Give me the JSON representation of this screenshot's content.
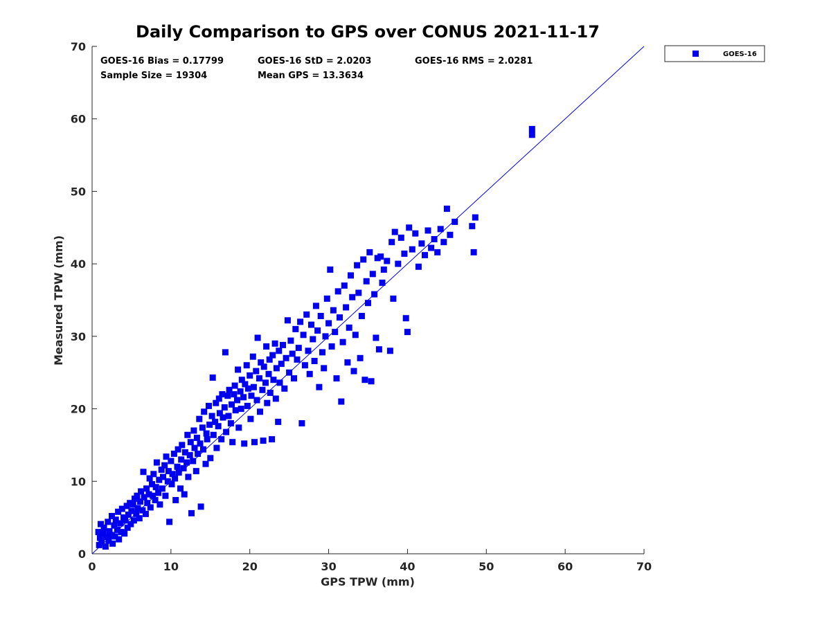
{
  "chart_data": {
    "type": "scatter",
    "title": "Daily Comparison to GPS over CONUS 2021-11-17",
    "xlabel": "GPS TPW (mm)",
    "ylabel": "Measured TPW (mm)",
    "xlim": [
      0,
      70
    ],
    "ylim": [
      0,
      70
    ],
    "xticks": [
      "0",
      "10",
      "20",
      "30",
      "40",
      "50",
      "60",
      "70"
    ],
    "yticks": [
      "0",
      "10",
      "20",
      "30",
      "40",
      "50",
      "60",
      "70"
    ],
    "grid": false,
    "legend_position": "top-right outside",
    "legend": [
      "GOES-16"
    ],
    "reference_line": {
      "label": "1:1",
      "x": [
        0,
        70
      ],
      "y": [
        0,
        70
      ]
    },
    "stats": {
      "bias": "GOES-16 Bias = 0.17799",
      "std": "GOES-16 StD = 2.0203",
      "rms": "GOES-16 RMS = 2.0281",
      "sample_size": "Sample Size = 19304",
      "mean_gps": "Mean GPS = 13.3634"
    },
    "series": [
      {
        "name": "GOES-16",
        "color": "#0000ee",
        "marker": "square",
        "points": [
          [
            0.8,
            3.0
          ],
          [
            0.9,
            1.2
          ],
          [
            1.0,
            2.2
          ],
          [
            1.1,
            4.1
          ],
          [
            1.2,
            1.5
          ],
          [
            1.4,
            2.8
          ],
          [
            1.5,
            3.6
          ],
          [
            1.7,
            1.0
          ],
          [
            1.8,
            2.3
          ],
          [
            2.0,
            4.4
          ],
          [
            2.1,
            1.8
          ],
          [
            2.2,
            3.1
          ],
          [
            2.4,
            2.6
          ],
          [
            2.5,
            5.2
          ],
          [
            2.6,
            1.4
          ],
          [
            2.8,
            3.9
          ],
          [
            2.9,
            2.4
          ],
          [
            3.0,
            4.7
          ],
          [
            3.2,
            3.3
          ],
          [
            3.3,
            5.8
          ],
          [
            3.4,
            2.0
          ],
          [
            3.6,
            4.2
          ],
          [
            3.7,
            3.0
          ],
          [
            3.8,
            6.2
          ],
          [
            4.0,
            5.0
          ],
          [
            4.1,
            2.8
          ],
          [
            4.2,
            4.6
          ],
          [
            4.4,
            6.6
          ],
          [
            4.5,
            3.6
          ],
          [
            4.6,
            5.4
          ],
          [
            4.8,
            7.0
          ],
          [
            4.9,
            4.1
          ],
          [
            5.0,
            5.9
          ],
          [
            5.2,
            6.8
          ],
          [
            5.3,
            4.6
          ],
          [
            5.4,
            7.6
          ],
          [
            5.6,
            5.5
          ],
          [
            5.7,
            8.0
          ],
          [
            5.8,
            6.3
          ],
          [
            6.0,
            4.9
          ],
          [
            6.1,
            7.2
          ],
          [
            6.2,
            8.6
          ],
          [
            6.4,
            6.0
          ],
          [
            6.5,
            11.3
          ],
          [
            6.6,
            7.8
          ],
          [
            6.8,
            5.5
          ],
          [
            6.9,
            9.0
          ],
          [
            7.0,
            7.0
          ],
          [
            7.2,
            8.2
          ],
          [
            7.3,
            10.4
          ],
          [
            7.4,
            6.4
          ],
          [
            7.6,
            9.6
          ],
          [
            7.7,
            8.0
          ],
          [
            7.8,
            11.0
          ],
          [
            8.0,
            7.4
          ],
          [
            8.1,
            9.2
          ],
          [
            8.2,
            12.6
          ],
          [
            8.4,
            8.4
          ],
          [
            8.5,
            10.2
          ],
          [
            8.6,
            6.8
          ],
          [
            8.8,
            11.6
          ],
          [
            8.9,
            9.0
          ],
          [
            9.0,
            10.6
          ],
          [
            9.2,
            12.2
          ],
          [
            9.3,
            8.0
          ],
          [
            9.4,
            13.4
          ],
          [
            9.6,
            10.0
          ],
          [
            9.7,
            11.4
          ],
          [
            9.8,
            4.4
          ],
          [
            10.0,
            12.8
          ],
          [
            10.1,
            9.6
          ],
          [
            10.2,
            11.0
          ],
          [
            10.4,
            13.8
          ],
          [
            10.5,
            10.4
          ],
          [
            10.6,
            7.4
          ],
          [
            10.8,
            12.0
          ],
          [
            10.9,
            14.4
          ],
          [
            11.0,
            11.2
          ],
          [
            11.2,
            9.0
          ],
          [
            11.3,
            13.0
          ],
          [
            11.4,
            15.0
          ],
          [
            11.6,
            11.8
          ],
          [
            11.7,
            8.2
          ],
          [
            11.8,
            14.0
          ],
          [
            12.0,
            12.6
          ],
          [
            12.1,
            16.4
          ],
          [
            12.2,
            10.6
          ],
          [
            12.4,
            13.6
          ],
          [
            12.5,
            15.4
          ],
          [
            12.6,
            5.6
          ],
          [
            12.8,
            12.8
          ],
          [
            12.9,
            17.0
          ],
          [
            13.0,
            14.6
          ],
          [
            13.2,
            11.4
          ],
          [
            13.3,
            16.0
          ],
          [
            13.4,
            13.8
          ],
          [
            13.6,
            18.6
          ],
          [
            13.7,
            15.2
          ],
          [
            13.8,
            6.5
          ],
          [
            14.0,
            17.4
          ],
          [
            14.1,
            14.4
          ],
          [
            14.2,
            19.6
          ],
          [
            14.4,
            12.4
          ],
          [
            14.5,
            16.6
          ],
          [
            14.6,
            15.8
          ],
          [
            14.8,
            20.4
          ],
          [
            14.9,
            17.8
          ],
          [
            15.0,
            13.2
          ],
          [
            15.2,
            19.0
          ],
          [
            15.3,
            24.3
          ],
          [
            15.4,
            16.4
          ],
          [
            15.6,
            18.2
          ],
          [
            15.7,
            20.8
          ],
          [
            15.8,
            14.6
          ],
          [
            16.0,
            17.6
          ],
          [
            16.1,
            21.4
          ],
          [
            16.2,
            19.4
          ],
          [
            16.4,
            15.8
          ],
          [
            16.5,
            22.0
          ],
          [
            16.6,
            18.8
          ],
          [
            16.8,
            20.2
          ],
          [
            16.9,
            27.8
          ],
          [
            17.0,
            16.8
          ],
          [
            17.2,
            21.8
          ],
          [
            17.3,
            19.0
          ],
          [
            17.4,
            22.6
          ],
          [
            17.6,
            18.0
          ],
          [
            17.7,
            20.6
          ],
          [
            17.8,
            15.4
          ],
          [
            18.0,
            22.0
          ],
          [
            18.1,
            23.2
          ],
          [
            18.2,
            19.8
          ],
          [
            18.4,
            21.2
          ],
          [
            18.5,
            25.4
          ],
          [
            18.6,
            17.4
          ],
          [
            18.8,
            22.4
          ],
          [
            18.9,
            20.0
          ],
          [
            19.0,
            24.0
          ],
          [
            19.2,
            21.6
          ],
          [
            19.3,
            15.2
          ],
          [
            19.4,
            23.4
          ],
          [
            19.6,
            26.0
          ],
          [
            19.7,
            20.4
          ],
          [
            19.8,
            22.8
          ],
          [
            20.0,
            24.6
          ],
          [
            20.1,
            18.6
          ],
          [
            20.2,
            21.8
          ],
          [
            20.4,
            27.2
          ],
          [
            20.5,
            23.0
          ],
          [
            20.6,
            15.4
          ],
          [
            20.8,
            25.2
          ],
          [
            20.9,
            21.2
          ],
          [
            21.0,
            29.8
          ],
          [
            21.2,
            24.2
          ],
          [
            21.3,
            19.6
          ],
          [
            21.4,
            26.4
          ],
          [
            21.6,
            22.6
          ],
          [
            21.7,
            15.6
          ],
          [
            21.8,
            25.8
          ],
          [
            22.0,
            23.6
          ],
          [
            22.1,
            28.6
          ],
          [
            22.2,
            20.8
          ],
          [
            22.4,
            24.8
          ],
          [
            22.5,
            26.8
          ],
          [
            22.6,
            22.2
          ],
          [
            22.8,
            15.8
          ],
          [
            22.9,
            27.4
          ],
          [
            23.0,
            24.0
          ],
          [
            23.2,
            29.0
          ],
          [
            23.3,
            21.4
          ],
          [
            23.4,
            25.6
          ],
          [
            23.6,
            18.2
          ],
          [
            23.7,
            28.0
          ],
          [
            23.8,
            23.6
          ],
          [
            24.0,
            26.2
          ],
          [
            24.2,
            28.8
          ],
          [
            24.4,
            22.8
          ],
          [
            24.6,
            27.0
          ],
          [
            24.8,
            32.2
          ],
          [
            25.0,
            25.0
          ],
          [
            25.2,
            29.4
          ],
          [
            25.4,
            27.6
          ],
          [
            25.6,
            24.2
          ],
          [
            25.8,
            31.0
          ],
          [
            26.0,
            26.8
          ],
          [
            26.2,
            28.4
          ],
          [
            26.4,
            32.0
          ],
          [
            26.6,
            18.0
          ],
          [
            26.8,
            30.2
          ],
          [
            27.0,
            26.0
          ],
          [
            27.2,
            33.0
          ],
          [
            27.4,
            28.0
          ],
          [
            27.6,
            24.8
          ],
          [
            27.8,
            31.6
          ],
          [
            28.0,
            29.6
          ],
          [
            28.2,
            26.6
          ],
          [
            28.4,
            34.2
          ],
          [
            28.6,
            30.8
          ],
          [
            28.8,
            23.0
          ],
          [
            29.0,
            32.8
          ],
          [
            29.2,
            27.8
          ],
          [
            29.4,
            25.6
          ],
          [
            29.6,
            30.0
          ],
          [
            29.8,
            35.2
          ],
          [
            30.0,
            31.8
          ],
          [
            30.2,
            39.2
          ],
          [
            30.4,
            28.6
          ],
          [
            30.6,
            33.6
          ],
          [
            30.8,
            30.6
          ],
          [
            31.0,
            24.2
          ],
          [
            31.2,
            36.2
          ],
          [
            31.4,
            32.6
          ],
          [
            31.6,
            21.0
          ],
          [
            31.8,
            29.2
          ],
          [
            32.0,
            37.0
          ],
          [
            32.2,
            34.0
          ],
          [
            32.4,
            26.4
          ],
          [
            32.6,
            31.2
          ],
          [
            32.8,
            38.4
          ],
          [
            33.0,
            35.4
          ],
          [
            33.2,
            25.2
          ],
          [
            33.4,
            30.2
          ],
          [
            33.6,
            39.8
          ],
          [
            33.8,
            36.0
          ],
          [
            34.0,
            27.0
          ],
          [
            34.2,
            32.8
          ],
          [
            34.4,
            40.6
          ],
          [
            34.6,
            24.0
          ],
          [
            34.8,
            37.6
          ],
          [
            35.0,
            34.6
          ],
          [
            35.2,
            41.6
          ],
          [
            35.4,
            23.8
          ],
          [
            35.6,
            38.6
          ],
          [
            35.8,
            35.8
          ],
          [
            36.0,
            29.8
          ],
          [
            36.2,
            40.8
          ],
          [
            36.4,
            28.2
          ],
          [
            36.6,
            41.0
          ],
          [
            36.8,
            37.4
          ],
          [
            37.0,
            39.2
          ],
          [
            37.4,
            40.4
          ],
          [
            37.8,
            28.0
          ],
          [
            38.0,
            43.0
          ],
          [
            38.2,
            35.2
          ],
          [
            38.4,
            44.4
          ],
          [
            38.8,
            40.0
          ],
          [
            39.2,
            43.6
          ],
          [
            39.6,
            41.4
          ],
          [
            39.8,
            32.5
          ],
          [
            40.0,
            30.6
          ],
          [
            40.2,
            45.0
          ],
          [
            40.6,
            42.0
          ],
          [
            41.0,
            44.2
          ],
          [
            41.4,
            39.6
          ],
          [
            41.8,
            42.8
          ],
          [
            42.2,
            41.2
          ],
          [
            42.6,
            44.6
          ],
          [
            43.0,
            42.2
          ],
          [
            43.4,
            43.4
          ],
          [
            43.8,
            41.6
          ],
          [
            44.2,
            44.8
          ],
          [
            44.6,
            43.0
          ],
          [
            45.0,
            47.6
          ],
          [
            45.4,
            44.0
          ],
          [
            46.0,
            45.8
          ],
          [
            48.2,
            45.2
          ],
          [
            48.4,
            41.6
          ],
          [
            48.6,
            46.4
          ],
          [
            55.8,
            58.6
          ],
          [
            55.8,
            57.8
          ]
        ]
      }
    ]
  }
}
